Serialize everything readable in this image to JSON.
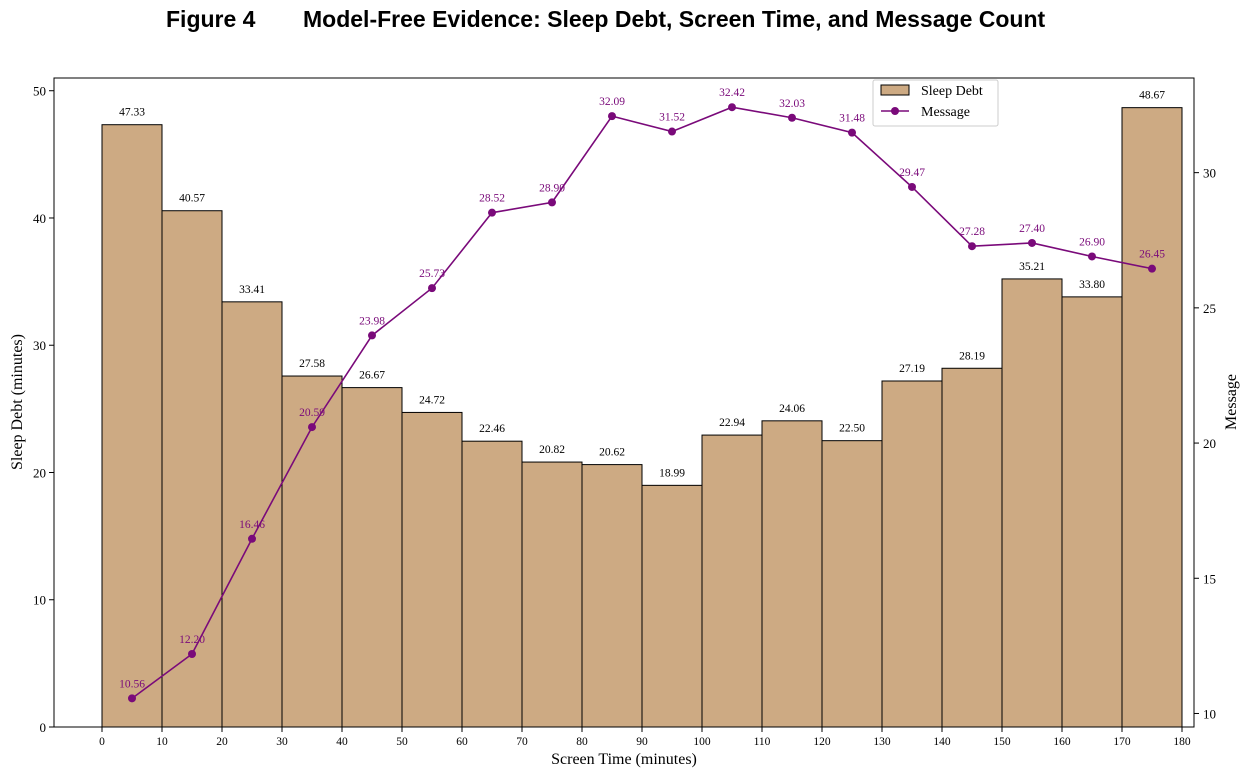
{
  "figure": {
    "label": "Figure 4",
    "title": "Model-Free Evidence: Sleep Debt, Screen Time, and Message Count"
  },
  "chart_data": {
    "type": "bar",
    "xlabel": "Screen Time (minutes)",
    "ylabel": "Sleep Debt (minutes)",
    "y2label": "Message",
    "xlim": [
      -8,
      182
    ],
    "ylim": [
      0,
      51
    ],
    "y2lim": [
      9.5,
      33.5
    ],
    "xticks": [
      0,
      10,
      20,
      30,
      40,
      50,
      60,
      70,
      80,
      90,
      100,
      110,
      120,
      130,
      140,
      150,
      160,
      170,
      180
    ],
    "yticks": [
      0,
      10,
      20,
      30,
      40,
      50
    ],
    "y2ticks": [
      10,
      15,
      20,
      25,
      30
    ],
    "bin_edges": [
      0,
      10,
      20,
      30,
      40,
      50,
      60,
      70,
      80,
      90,
      100,
      110,
      120,
      130,
      140,
      150,
      160,
      170,
      180
    ],
    "grid": false,
    "legend_position": "top-center",
    "series": [
      {
        "name": "Sleep Debt",
        "kind": "bar",
        "axis": "left",
        "color": "#cdaa83",
        "edgecolor": "#000000",
        "label_color": "#000000",
        "values": [
          47.33,
          40.57,
          33.41,
          27.58,
          26.67,
          24.72,
          22.46,
          20.82,
          20.62,
          18.99,
          22.94,
          24.06,
          22.5,
          27.19,
          28.19,
          35.21,
          33.8,
          48.67
        ],
        "labels": [
          "47.33",
          "40.57",
          "33.41",
          "27.58",
          "26.67",
          "24.72",
          "22.46",
          "20.82",
          "20.62",
          "18.99",
          "22.94",
          "24.06",
          "22.50",
          "27.19",
          "28.19",
          "35.21",
          "33.80",
          "48.67"
        ]
      },
      {
        "name": "Message",
        "kind": "line",
        "axis": "right",
        "color": "#7a0a7a",
        "x": [
          5,
          15,
          25,
          35,
          45,
          55,
          65,
          75,
          85,
          95,
          105,
          115,
          125,
          135,
          145,
          155,
          165,
          175
        ],
        "values": [
          10.56,
          12.2,
          16.46,
          20.59,
          23.98,
          25.73,
          28.52,
          28.9,
          32.09,
          31.52,
          32.42,
          32.03,
          31.48,
          29.47,
          27.28,
          27.4,
          26.9,
          26.45
        ],
        "labels": [
          "10.56",
          "12.20",
          "16.46",
          "20.59",
          "23.98",
          "25.73",
          "28.52",
          "28.90",
          "32.09",
          "31.52",
          "32.42",
          "32.03",
          "31.48",
          "29.47",
          "27.28",
          "27.40",
          "26.90",
          "26.45"
        ]
      }
    ]
  }
}
